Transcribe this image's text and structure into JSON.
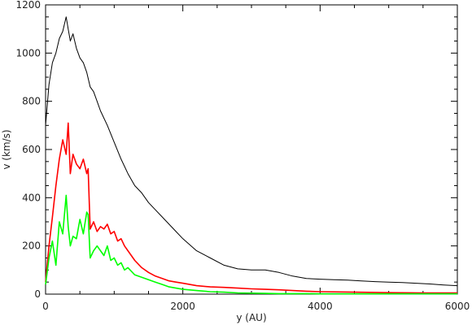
{
  "chart_data": {
    "type": "line",
    "title": "",
    "xlabel": "y (AU)",
    "ylabel": "v (km/s)",
    "xlim": [
      0,
      6000
    ],
    "ylim": [
      0,
      1200
    ],
    "xticks": [
      0,
      2000,
      4000,
      6000
    ],
    "yticks": [
      0,
      200,
      400,
      600,
      800,
      1000,
      1200
    ],
    "grid": false,
    "legend": "none",
    "series": [
      {
        "color": "#000000",
        "x": [
          0,
          50,
          100,
          150,
          200,
          250,
          300,
          330,
          360,
          400,
          450,
          500,
          550,
          600,
          650,
          700,
          750,
          800,
          900,
          1000,
          1100,
          1200,
          1300,
          1400,
          1500,
          1600,
          1700,
          1800,
          1900,
          2000,
          2200,
          2400,
          2600,
          2800,
          3000,
          3200,
          3400,
          3600,
          3800,
          4000,
          4200,
          4400,
          4600,
          4800,
          5000,
          5200,
          5400,
          5600,
          5800,
          6000
        ],
        "y": [
          700,
          870,
          960,
          1000,
          1060,
          1090,
          1150,
          1100,
          1050,
          1080,
          1020,
          980,
          960,
          920,
          860,
          840,
          800,
          760,
          700,
          630,
          560,
          500,
          450,
          420,
          380,
          350,
          320,
          290,
          260,
          230,
          180,
          150,
          120,
          105,
          100,
          100,
          90,
          75,
          65,
          62,
          60,
          58,
          55,
          52,
          50,
          48,
          45,
          42,
          38,
          35
        ]
      },
      {
        "color": "#ff0000",
        "x": [
          0,
          50,
          100,
          150,
          200,
          250,
          300,
          330,
          360,
          400,
          450,
          500,
          550,
          600,
          620,
          650,
          700,
          750,
          800,
          850,
          900,
          950,
          1000,
          1050,
          1100,
          1150,
          1200,
          1300,
          1400,
          1500,
          1600,
          1700,
          1800,
          1900,
          2000,
          2200,
          2400,
          2600,
          2800,
          3000,
          3200,
          3400,
          3600,
          3800,
          4000,
          4500,
          5000,
          5500,
          6000
        ],
        "y": [
          50,
          200,
          320,
          450,
          560,
          640,
          580,
          710,
          500,
          580,
          540,
          520,
          560,
          500,
          520,
          270,
          300,
          260,
          280,
          270,
          290,
          250,
          260,
          220,
          230,
          200,
          180,
          140,
          110,
          90,
          75,
          65,
          55,
          50,
          45,
          35,
          30,
          28,
          25,
          22,
          20,
          18,
          15,
          12,
          10,
          8,
          6,
          5,
          5
        ]
      },
      {
        "color": "#00ff00",
        "x": [
          0,
          50,
          100,
          150,
          200,
          250,
          300,
          330,
          360,
          400,
          450,
          500,
          550,
          600,
          620,
          650,
          700,
          750,
          800,
          850,
          900,
          950,
          1000,
          1050,
          1100,
          1150,
          1200,
          1300,
          1400,
          1500,
          1600,
          1700,
          1800,
          1900,
          2000,
          2200,
          2400,
          2600,
          2800,
          3000,
          3200,
          3400,
          3600,
          3800,
          4000,
          4500,
          5000,
          5500,
          6000
        ],
        "y": [
          40,
          150,
          220,
          120,
          300,
          250,
          410,
          280,
          200,
          240,
          230,
          310,
          250,
          340,
          330,
          150,
          180,
          200,
          180,
          160,
          200,
          140,
          150,
          120,
          130,
          100,
          110,
          80,
          70,
          60,
          50,
          40,
          30,
          25,
          20,
          15,
          10,
          8,
          5,
          4,
          3,
          2,
          2,
          2,
          1,
          1,
          1,
          1,
          1
        ]
      }
    ]
  }
}
